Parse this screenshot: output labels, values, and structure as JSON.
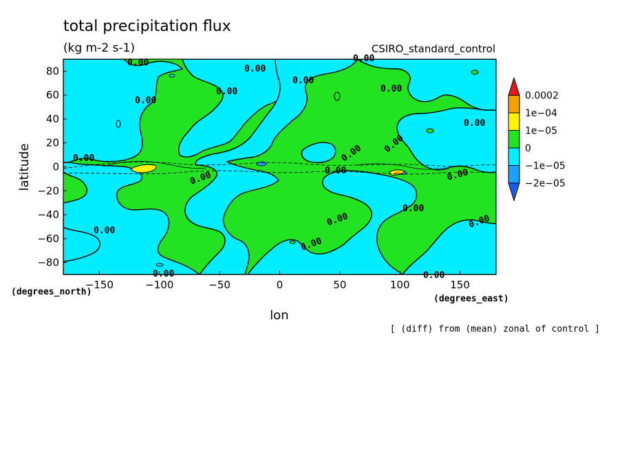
{
  "chart_data": {
    "type": "contour-map",
    "title": "total precipitation flux",
    "units": "(kg m-2 s-1)",
    "dataset": "CSIRO_standard_control",
    "xlabel": "lon",
    "ylabel": "latitude",
    "x_units": "(degrees_east)",
    "y_units": "(degrees_north)",
    "xlim": [
      -180,
      180
    ],
    "ylim": [
      -90,
      90
    ],
    "x_ticks": [
      "−150",
      "−100",
      "−50",
      "0",
      "50",
      "100",
      "150"
    ],
    "x_tick_values": [
      -150,
      -100,
      -50,
      0,
      50,
      100,
      150
    ],
    "y_ticks": [
      "80",
      "60",
      "40",
      "20",
      "0",
      "−20",
      "−40",
      "−60",
      "−80"
    ],
    "y_tick_values": [
      80,
      60,
      40,
      20,
      0,
      -20,
      -40,
      -60,
      -80
    ],
    "colorbar": {
      "labels": [
        "0.0002",
        "1e−04",
        "1e−05",
        "0",
        "−1e−05",
        "−2e−05"
      ],
      "colors": [
        "#e8181a",
        "#f5a000",
        "#fdf200",
        "#22e222",
        "#00eeff",
        "#1aa0ff",
        "#1a5cf0"
      ]
    },
    "contour_labels": [
      "0.00"
    ],
    "note": "[ (diff) from (mean) zonal of control ]"
  }
}
